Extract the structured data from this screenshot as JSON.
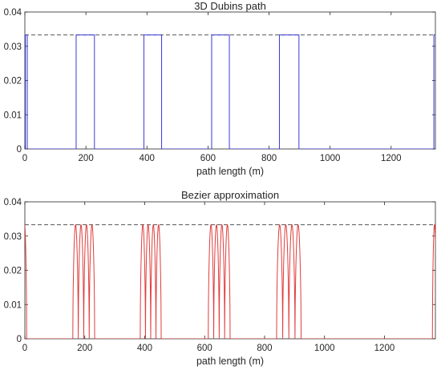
{
  "chart_data": [
    {
      "type": "line",
      "title": "3D Dubins path",
      "xlabel": "path length (m)",
      "ylabel": "",
      "xlim": [
        0,
        1345
      ],
      "ylim": [
        0,
        0.04
      ],
      "xticks": [
        0,
        200,
        400,
        600,
        800,
        1000,
        1200
      ],
      "yticks": [
        0,
        0.01,
        0.02,
        0.03,
        0.04
      ],
      "xtick_labels": [
        "0",
        "200",
        "400",
        "600",
        "800",
        "1000",
        "1200"
      ],
      "ytick_labels": [
        "0",
        "0.01",
        "0.02",
        "0.03",
        "0.04"
      ],
      "grid": false,
      "reference_line": {
        "y": 0.0333,
        "style": "dashed",
        "color": "#555555"
      },
      "series": [
        {
          "color": "#3b3bd9",
          "x": [
            0,
            2,
            2,
            8,
            8,
            168,
            168,
            228,
            228,
            390,
            390,
            448,
            448,
            612,
            612,
            670,
            670,
            834,
            834,
            898,
            898,
            1340,
            1340,
            1345
          ],
          "y": [
            0,
            0,
            0.0333,
            0.0333,
            0,
            0,
            0.0333,
            0.0333,
            0,
            0,
            0.0333,
            0.0333,
            0,
            0,
            0.0333,
            0.0333,
            0,
            0,
            0.0333,
            0.0333,
            0,
            0,
            0.0333,
            0.0333
          ]
        }
      ]
    },
    {
      "type": "line",
      "title": "Bezier approximation",
      "xlabel": "path length (m)",
      "ylabel": "",
      "xlim": [
        0,
        1370
      ],
      "ylim": [
        0,
        0.04
      ],
      "xticks": [
        0,
        200,
        400,
        600,
        800,
        1000,
        1200
      ],
      "yticks": [
        0,
        0.01,
        0.02,
        0.03,
        0.04
      ],
      "xtick_labels": [
        "0",
        "200",
        "400",
        "600",
        "800",
        "1000",
        "1200"
      ],
      "ytick_labels": [
        "0",
        "0.01",
        "0.02",
        "0.03",
        "0.04"
      ],
      "grid": false,
      "reference_line": {
        "y": 0.0333,
        "style": "dashed",
        "color": "#555555"
      },
      "series": [
        {
          "color": "#e03c3c",
          "shape": "repeated bell-shaped humps",
          "humps": [
            {
              "start": -8,
              "end": 6,
              "peak": 0.0333
            },
            {
              "start": 1360,
              "end": 1374,
              "peak": 0.0333
            },
            {
              "group_start": 160,
              "group_end": 233,
              "count": 4,
              "peak": 0.0333
            },
            {
              "group_start": 385,
              "group_end": 455,
              "count": 4,
              "peak": 0.0333
            },
            {
              "group_start": 612,
              "group_end": 685,
              "count": 4,
              "peak": 0.0333
            },
            {
              "group_start": 840,
              "group_end": 922,
              "count": 4,
              "peak": 0.0333
            }
          ]
        }
      ]
    }
  ]
}
